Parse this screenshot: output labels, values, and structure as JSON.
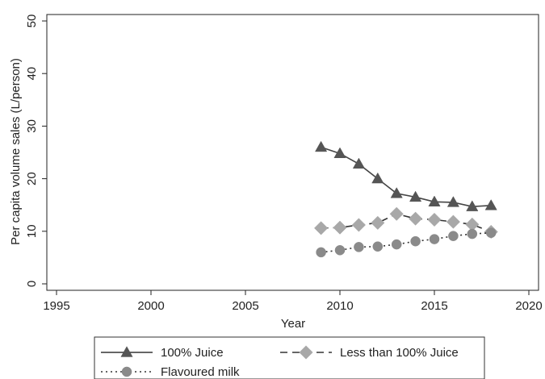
{
  "chart_data": {
    "type": "line",
    "title": "",
    "xlabel": "Year",
    "ylabel": "Per capita volume sales (L/person)",
    "xlim": [
      1995,
      2020
    ],
    "ylim": [
      0,
      50
    ],
    "x_ticks": [
      "1995",
      "2000",
      "2005",
      "2010",
      "2015",
      "2020"
    ],
    "y_ticks": [
      "0",
      "10",
      "20",
      "30",
      "40",
      "50"
    ],
    "grid": false,
    "legend_position": "bottom",
    "x": [
      2009,
      2010,
      2011,
      2012,
      2013,
      2014,
      2015,
      2016,
      2017,
      2018
    ],
    "series": [
      {
        "name": "100% Juice",
        "values": [
          26.0,
          24.8,
          22.8,
          20.0,
          17.2,
          16.5,
          15.6,
          15.5,
          14.7,
          14.9
        ],
        "color": "#555555",
        "line": "solid",
        "marker": "triangle"
      },
      {
        "name": "Less than 100% Juice",
        "values": [
          10.6,
          10.7,
          11.2,
          11.6,
          13.3,
          12.4,
          12.2,
          11.8,
          11.3,
          9.9
        ],
        "color": "#a8a8a8",
        "line": "dashed",
        "marker": "diamond"
      },
      {
        "name": "Flavoured milk",
        "values": [
          6.0,
          6.4,
          7.0,
          7.1,
          7.5,
          8.1,
          8.5,
          9.1,
          9.5,
          9.7
        ],
        "color": "#8a8a8a",
        "line": "dotted",
        "marker": "circle"
      }
    ]
  }
}
